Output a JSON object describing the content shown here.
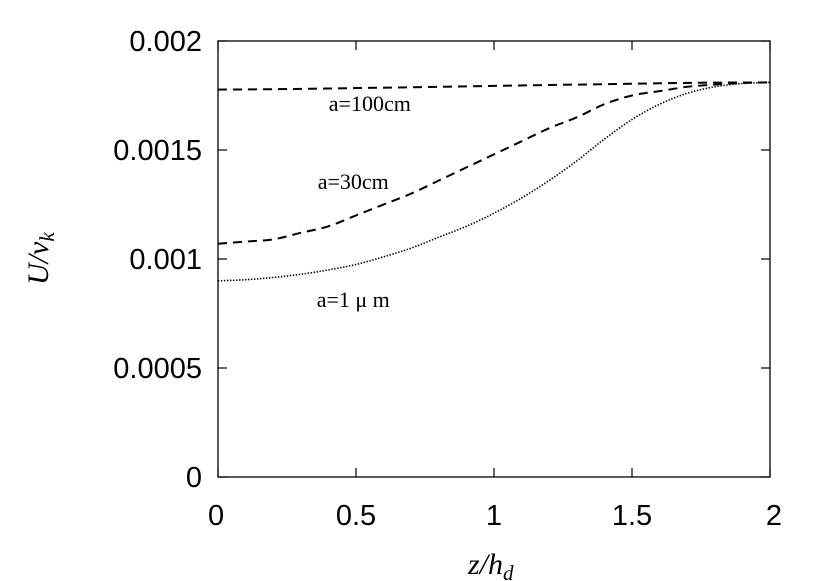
{
  "chart_data": {
    "type": "line",
    "title": "",
    "xlabel": {
      "base": "z/h",
      "sub": "d"
    },
    "ylabel": {
      "base": "U/v",
      "sub": "k"
    },
    "xlim": [
      0,
      2
    ],
    "ylim": [
      0,
      0.002
    ],
    "x_ticks": [
      {
        "value": 0,
        "label": "0"
      },
      {
        "value": 0.5,
        "label": "0.5"
      },
      {
        "value": 1,
        "label": "1"
      },
      {
        "value": 1.5,
        "label": "1.5"
      },
      {
        "value": 2,
        "label": "2"
      }
    ],
    "y_ticks": [
      {
        "value": 0,
        "label": "0"
      },
      {
        "value": 0.0005,
        "label": "0.0005"
      },
      {
        "value": 0.001,
        "label": "0.001"
      },
      {
        "value": 0.0015,
        "label": "0.0015"
      },
      {
        "value": 0.002,
        "label": "0.002"
      }
    ],
    "grid": false,
    "legend": "none",
    "series": [
      {
        "name": "a=100cm",
        "style": "dashed",
        "label_at": [
          0.55,
          0.00168
        ],
        "x": [
          0,
          0.2,
          0.4,
          0.6,
          0.8,
          1.0,
          1.2,
          1.4,
          1.6,
          1.8,
          2.0
        ],
        "y": [
          0.001777,
          0.001779,
          0.001782,
          0.001786,
          0.00179,
          0.001794,
          0.001798,
          0.001802,
          0.001806,
          0.001809,
          0.00181
        ]
      },
      {
        "name": "a=30cm",
        "style": "dashed",
        "label_at": [
          0.49,
          0.00132
        ],
        "x": [
          0,
          0.1,
          0.2,
          0.3,
          0.4,
          0.5,
          0.6,
          0.7,
          0.8,
          0.9,
          1.0,
          1.1,
          1.2,
          1.3,
          1.4,
          1.5,
          1.6,
          1.7,
          1.8,
          1.9,
          2.0
        ],
        "y": [
          0.00107,
          0.00108,
          0.00109,
          0.00112,
          0.00115,
          0.0012,
          0.00125,
          0.0013,
          0.00136,
          0.00142,
          0.00148,
          0.00154,
          0.0016,
          0.00165,
          0.00171,
          0.00175,
          0.00177,
          0.00179,
          0.0018,
          0.001808,
          0.00181
        ]
      },
      {
        "name": "a=1 μ m",
        "style": "dotted",
        "label_at": [
          0.49,
          0.00078
        ],
        "x": [
          0,
          0.1,
          0.2,
          0.3,
          0.4,
          0.5,
          0.6,
          0.7,
          0.8,
          0.9,
          1.0,
          1.1,
          1.2,
          1.3,
          1.4,
          1.5,
          1.6,
          1.7,
          1.8,
          1.9,
          2.0
        ],
        "y": [
          0.0009,
          0.000905,
          0.000915,
          0.00093,
          0.00095,
          0.000975,
          0.00101,
          0.00105,
          0.0011,
          0.00115,
          0.00121,
          0.00128,
          0.00136,
          0.00145,
          0.00155,
          0.00164,
          0.00171,
          0.00176,
          0.00179,
          0.001805,
          0.00181
        ]
      }
    ]
  }
}
